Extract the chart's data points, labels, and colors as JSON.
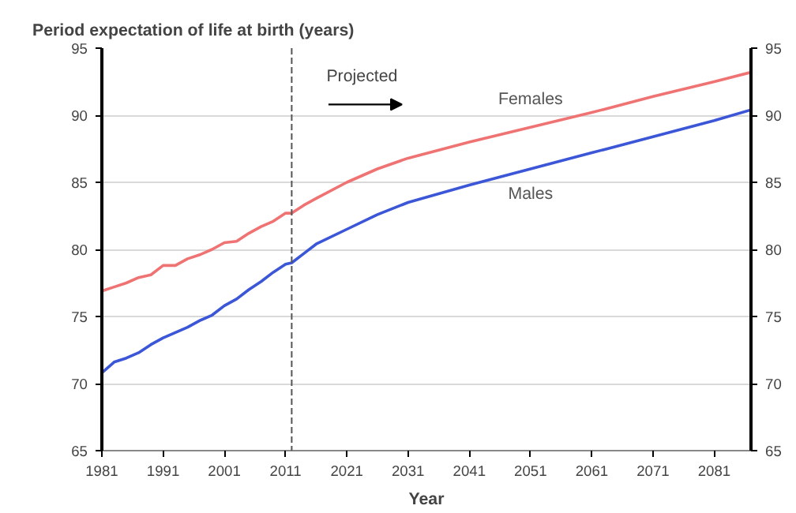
{
  "chart_data": {
    "type": "line",
    "ylabel": "Period expectation  of life at birth (years)",
    "xlabel": "Year",
    "x": [
      1981,
      1983,
      1985,
      1987,
      1989,
      1991,
      1993,
      1995,
      1997,
      1999,
      2001,
      2003,
      2005,
      2007,
      2009,
      2011,
      2012,
      2014,
      2016,
      2021,
      2026,
      2031,
      2041,
      2051,
      2061,
      2071,
      2081,
      2087
    ],
    "series": [
      {
        "name": "Females",
        "color": "#f07373",
        "values": [
          76.9,
          77.2,
          77.5,
          77.9,
          78.1,
          78.8,
          78.8,
          79.3,
          79.6,
          80.0,
          80.5,
          80.6,
          81.2,
          81.7,
          82.1,
          82.7,
          82.7,
          83.3,
          83.8,
          85.0,
          86.0,
          86.8,
          88.0,
          89.1,
          90.2,
          91.4,
          92.5,
          93.2
        ]
      },
      {
        "name": "Males",
        "color": "#3b56d6",
        "values": [
          70.8,
          71.6,
          71.9,
          72.3,
          72.9,
          73.4,
          73.8,
          74.2,
          74.7,
          75.1,
          75.8,
          76.3,
          77.0,
          77.6,
          78.3,
          78.9,
          79.0,
          79.7,
          80.4,
          81.5,
          82.6,
          83.5,
          84.8,
          86.0,
          87.2,
          88.4,
          89.6,
          90.4
        ]
      }
    ],
    "xlim": [
      1981,
      2087
    ],
    "xticks": [
      1981,
      1991,
      2001,
      2011,
      2021,
      2031,
      2041,
      2051,
      2061,
      2071,
      2081
    ],
    "ylim": [
      65,
      95
    ],
    "yticks": [
      65,
      70,
      75,
      80,
      85,
      90,
      95
    ],
    "y2lim": [
      65,
      95
    ],
    "y2ticks": [
      65,
      70,
      75,
      80,
      85,
      90,
      95
    ],
    "ref_lines": [
      {
        "axis": "x",
        "value": 2012,
        "label": null,
        "line_style": "dashed",
        "color": "#555555"
      }
    ],
    "annotations": [
      "Projected"
    ],
    "grid": "y",
    "marker": "none",
    "line_style": "solid"
  }
}
